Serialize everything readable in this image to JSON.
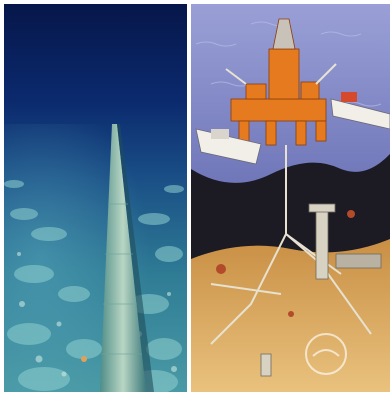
{
  "panels": [
    {
      "id": "underwater-photo",
      "kind": "photograph"
    },
    {
      "id": "offshore-illustration",
      "kind": "illustration"
    }
  ],
  "colors": {
    "deep_water": "#0b2a6e",
    "seabed_teal": "#3f8aa0",
    "sky_sea": "#7f86c4",
    "rig_orange": "#e67a1e",
    "sand": "#d9a75a",
    "cutaway_dark": "#1c1a22"
  }
}
